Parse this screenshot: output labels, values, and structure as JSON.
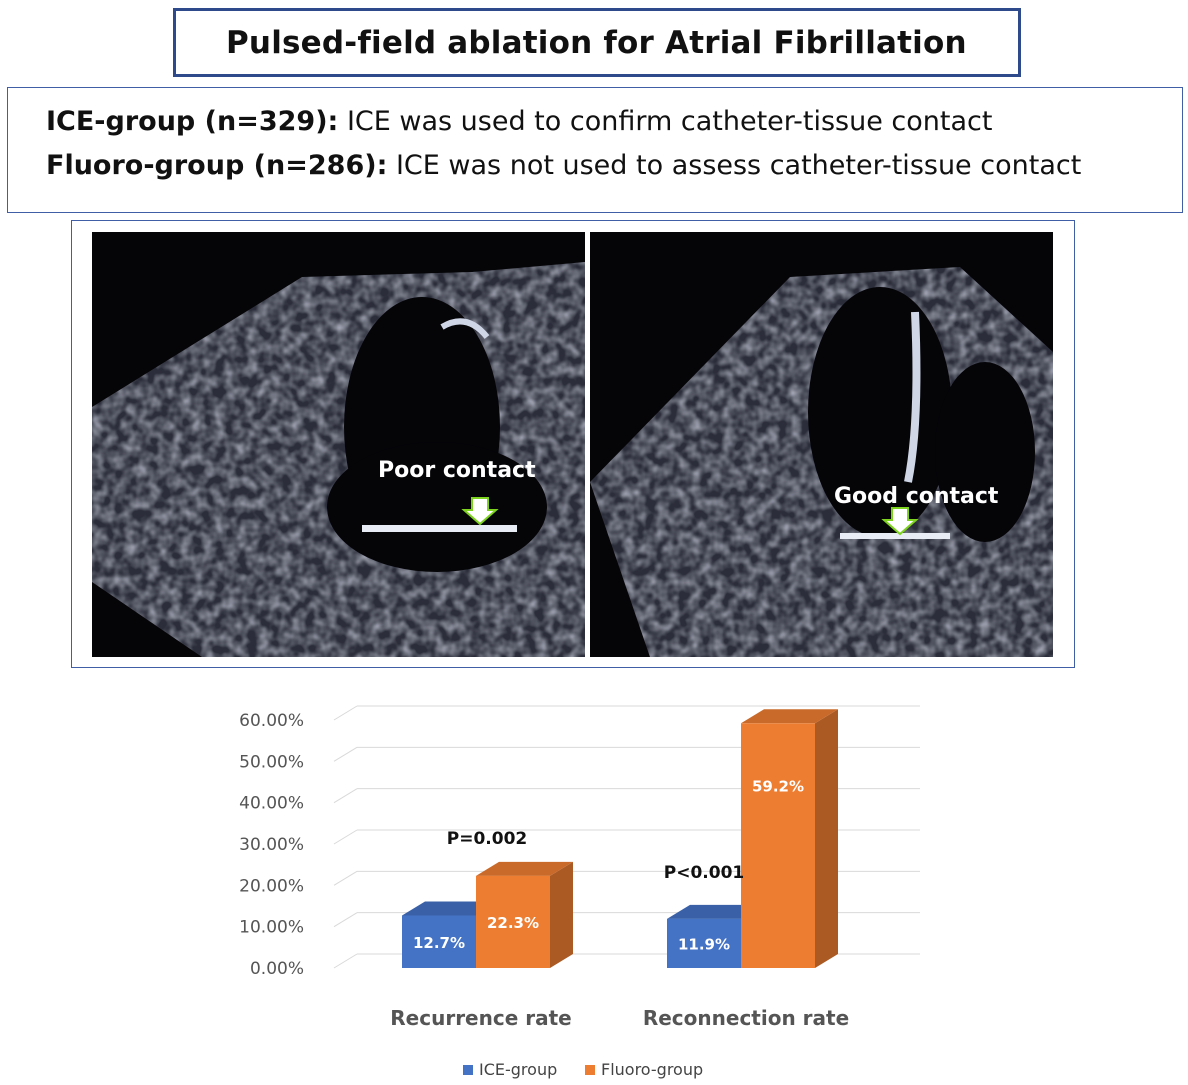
{
  "title": "Pulsed-field ablation for Atrial Fibrillation",
  "definitions": {
    "ice": {
      "label": "ICE-group  (n=329):",
      "text": "ICE was used to confirm catheter-tissue  contact"
    },
    "fluoro": {
      "label": "Fluoro-group  (n=286):",
      "text": "ICE was not used to assess catheter-tissue  contact"
    }
  },
  "echo": {
    "left_label": "Poor contact",
    "right_label": "Good contact"
  },
  "colors": {
    "ice": "#4472c4",
    "fluoro": "#ed7d31",
    "box_border": "#2f4a8a"
  },
  "chart_data": {
    "type": "bar",
    "categories": [
      "Recurrence rate",
      "Reconnection rate"
    ],
    "series": [
      {
        "name": "ICE-group",
        "values": [
          12.7,
          11.9
        ],
        "labels": [
          "12.7%",
          "11.9%"
        ],
        "color": "#4472c4"
      },
      {
        "name": "Fluoro-group",
        "values": [
          22.3,
          59.2
        ],
        "labels": [
          "22.3%",
          "59.2%"
        ],
        "color": "#ed7d31"
      }
    ],
    "yticks": [
      "0.00%",
      "10.00%",
      "20.00%",
      "30.00%",
      "40.00%",
      "50.00%",
      "60.00%"
    ],
    "ylim": [
      0,
      60
    ],
    "annotations": [
      "P=0.002",
      "P<0.001"
    ],
    "legend_position": "bottom",
    "grid": true,
    "style": "3d"
  }
}
